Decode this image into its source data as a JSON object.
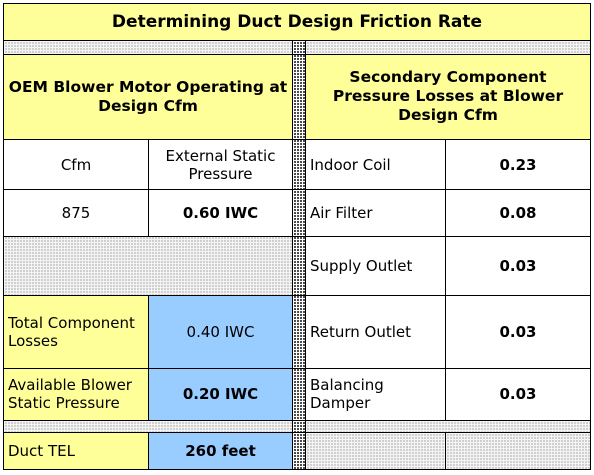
{
  "title": "Determining Duct Design Friction Rate",
  "left_header": "OEM Blower Motor Operating at Design Cfm",
  "right_header": "Secondary Component Pressure Losses at Blower Design Cfm",
  "cfm_label": "Cfm",
  "esp_label": "External Static Pressure",
  "cfm_value": "875",
  "esp_value": "0.60 IWC",
  "components": [
    {
      "name": "Indoor Coil",
      "value": "0.23"
    },
    {
      "name": "Air Filter",
      "value": "0.08"
    },
    {
      "name": "Supply Outlet",
      "value": "0.03"
    },
    {
      "name": "Return Outlet",
      "value": "0.03"
    },
    {
      "name": "Balancing Damper",
      "value": "0.03"
    }
  ],
  "total_losses_label": "Total Component Losses",
  "total_losses_value": "0.40 IWC",
  "available_label": "Available Blower Static Pressure",
  "available_value": "0.20 IWC",
  "duct_tel_label": "Duct TEL",
  "duct_tel_value": "260 feet",
  "colors": {
    "input_yellow": "#ffff99",
    "result_blue": "#99ccff"
  }
}
